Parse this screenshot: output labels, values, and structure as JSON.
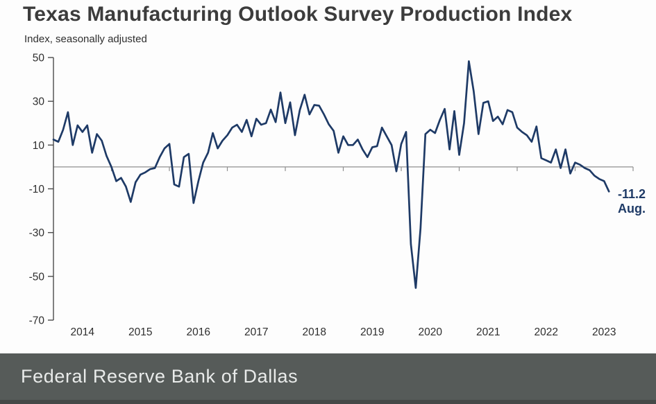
{
  "title": "Texas Manufacturing Outlook Survey Production Index",
  "subtitle": "Index, seasonally adjusted",
  "annotation": {
    "value": "-11.2",
    "month": "Aug."
  },
  "footer": {
    "text": "Federal Reserve Bank of Dallas"
  },
  "colors": {
    "line": "#1e3a66",
    "annotation": "#1e3a66",
    "axis": "#4a4a4a",
    "zero_line": "#8f8f8f",
    "tick_label": "#2e2e2e",
    "title": "#3c3c3c",
    "footer_bg": "#565b59",
    "footer_text": "#e9ebea"
  },
  "chart_data": {
    "type": "line",
    "title": "Texas Manufacturing Outlook Survey Production Index",
    "ylabel": "Index, seasonally adjusted",
    "frequency": "monthly",
    "x_start": "2014-01",
    "x_end": "2023-08",
    "ylim": [
      -70,
      50
    ],
    "y_ticks": [
      50,
      30,
      10,
      -10,
      -30,
      -50,
      -70
    ],
    "year_labels": [
      "2014",
      "2015",
      "2016",
      "2017",
      "2018",
      "2019",
      "2020",
      "2021",
      "2022",
      "2023"
    ],
    "grid": false,
    "zero_line": true,
    "legend": "none",
    "last_point": {
      "label": "Aug.",
      "value": -11.2
    },
    "series": [
      {
        "name": "Production index (seasonally adjusted)",
        "values": [
          12.5,
          11.5,
          17,
          25,
          10,
          19,
          16,
          19,
          6.5,
          15,
          12,
          5,
          0,
          -6.5,
          -5,
          -9,
          -16,
          -7,
          -3.5,
          -2.5,
          -1,
          -0.5,
          4.5,
          8.5,
          10.5,
          -8,
          -9,
          4.5,
          6,
          -16.5,
          -6.5,
          2,
          6.5,
          15.5,
          8.5,
          12,
          14.5,
          18,
          19.3,
          16,
          21.5,
          14,
          22,
          19.3,
          20,
          26.2,
          20.5,
          34,
          20,
          29.5,
          14.5,
          26,
          33,
          24,
          28.3,
          28,
          24,
          19.5,
          16.5,
          6.5,
          14,
          10,
          10,
          12.5,
          8,
          4.5,
          9,
          9.5,
          18,
          14,
          10,
          -2,
          10.5,
          16,
          -35.3,
          -55.3,
          -28,
          15,
          17,
          15.5,
          21.5,
          26.5,
          8,
          25.5,
          5.5,
          20,
          48.3,
          34.5,
          15,
          29.3,
          30,
          21,
          23,
          19.5,
          26,
          25,
          18,
          16,
          14.5,
          11.5,
          18.5,
          4,
          3,
          2,
          8,
          -0.5,
          8,
          -3,
          2,
          1,
          -0.5,
          -1.5,
          -4,
          -5.5,
          -6.5,
          -11.2
        ]
      }
    ]
  }
}
